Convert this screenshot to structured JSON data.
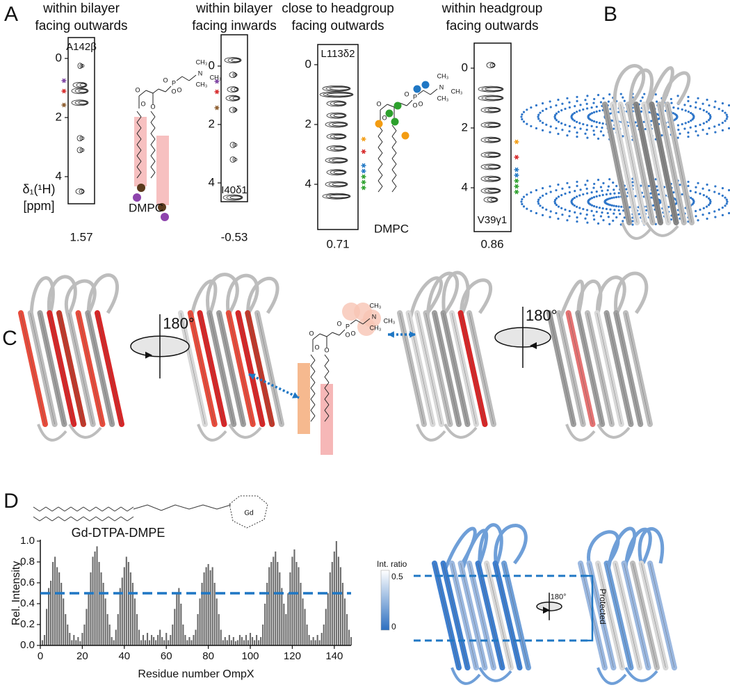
{
  "panels": {
    "A": "A",
    "B": "B",
    "C": "C",
    "D": "D"
  },
  "strips": [
    {
      "header": [
        "within bilayer",
        "facing outwards"
      ],
      "residue": "A142β",
      "ppm": "1.57",
      "yticks": [
        0,
        2,
        4
      ]
    },
    {
      "header": [
        "within bilayer",
        "facing inwards"
      ],
      "residue": "I40δ1",
      "ppm": "-0.53",
      "yticks": [
        0,
        2,
        4
      ]
    },
    {
      "header": [
        "close to headgroup",
        "facing outwards"
      ],
      "residue": "L113δ2",
      "ppm": "0.71",
      "yticks": [
        0,
        2,
        4
      ]
    },
    {
      "header": [
        "within headgroup",
        "facing outwards"
      ],
      "residue": "V39γ1",
      "ppm": "0.86",
      "yticks": [
        0,
        2,
        4
      ]
    }
  ],
  "axis_label": [
    "δ₁(¹H)",
    "[ppm]"
  ],
  "lipids": {
    "left": "DMPC",
    "right": "DMPC"
  },
  "structures": [
    {
      "atoms": [
        "CH₃",
        "N",
        "CH₃",
        "CH₃",
        "P",
        "O",
        "O",
        "O",
        "O",
        "O",
        "O"
      ]
    },
    {
      "atoms": [
        "CH₃",
        "N",
        "CH₃",
        "CH₃",
        "P",
        "O",
        "O",
        "O",
        "O",
        "O",
        "O"
      ]
    },
    {
      "atoms": [
        "CH₃",
        "N",
        "CH₃",
        "CH₃",
        "P",
        "O",
        "O",
        "O",
        "O",
        "O",
        "O"
      ]
    }
  ],
  "rotation": {
    "left": "180°",
    "right": "180°",
    "small": "180°"
  },
  "gd_label": "Gd",
  "colorbar": {
    "title": "Int. ratio",
    "top": "0.5",
    "bottom": "0"
  },
  "protected": "Protected",
  "chart_data": {
    "type": "bar",
    "title": "Gd-DTPA-DMPE",
    "x_label": "Residue number OmpX",
    "y_label": "Rel. Intensity",
    "color": "#6b6b6b",
    "x": [
      1,
      2,
      3,
      4,
      5,
      6,
      7,
      8,
      9,
      10,
      11,
      12,
      13,
      14,
      15,
      16,
      17,
      18,
      19,
      20,
      21,
      22,
      23,
      24,
      25,
      26,
      27,
      28,
      29,
      30,
      31,
      32,
      33,
      34,
      35,
      36,
      37,
      38,
      39,
      40,
      41,
      42,
      43,
      44,
      45,
      46,
      47,
      48,
      49,
      50,
      51,
      52,
      53,
      54,
      55,
      56,
      57,
      58,
      59,
      60,
      61,
      62,
      63,
      64,
      65,
      66,
      67,
      68,
      69,
      70,
      71,
      72,
      73,
      74,
      75,
      76,
      77,
      78,
      79,
      80,
      81,
      82,
      83,
      84,
      85,
      86,
      87,
      88,
      89,
      90,
      91,
      92,
      93,
      94,
      95,
      96,
      97,
      98,
      99,
      100,
      101,
      102,
      103,
      104,
      105,
      106,
      107,
      108,
      109,
      110,
      111,
      112,
      113,
      114,
      115,
      116,
      117,
      118,
      119,
      120,
      121,
      122,
      123,
      124,
      125,
      126,
      127,
      128,
      129,
      130,
      131,
      132,
      133,
      134,
      135,
      136,
      137,
      138,
      139,
      140,
      141,
      142,
      143,
      144,
      145,
      146,
      147,
      148
    ],
    "values": [
      0.05,
      0.1,
      0.35,
      0.55,
      0.62,
      0.8,
      0.85,
      0.75,
      0.7,
      0.6,
      0.45,
      0.3,
      0.2,
      0.12,
      0.05,
      0.1,
      0.05,
      0.08,
      0.04,
      0.12,
      0.2,
      0.35,
      0.5,
      0.7,
      0.85,
      0.9,
      0.95,
      0.8,
      0.7,
      0.6,
      0.45,
      0.3,
      0.2,
      0.08,
      0.05,
      0.15,
      0.3,
      0.55,
      0.65,
      0.75,
      0.85,
      0.8,
      0.7,
      0.6,
      0.45,
      0.3,
      0.15,
      0.05,
      0.1,
      0.05,
      0.12,
      0.05,
      0.1,
      0.08,
      0.05,
      0.1,
      0.15,
      0.08,
      0.05,
      0.12,
      0.05,
      0.1,
      0.2,
      0.35,
      0.5,
      0.55,
      0.4,
      0.2,
      0.1,
      0.05,
      0.08,
      0.05,
      0.1,
      0.15,
      0.3,
      0.45,
      0.6,
      0.7,
      0.75,
      0.78,
      0.72,
      0.75,
      0.6,
      0.45,
      0.3,
      0.15,
      0.05,
      0.08,
      0.05,
      0.1,
      0.05,
      0.08,
      0.04,
      0.05,
      0.1,
      0.08,
      0.05,
      0.1,
      0.05,
      0.12,
      0.08,
      0.05,
      0.1,
      0.05,
      0.08,
      0.2,
      0.4,
      0.6,
      0.75,
      0.8,
      0.85,
      0.9,
      0.8,
      0.7,
      0.55,
      0.4,
      0.3,
      0.5,
      0.7,
      0.85,
      0.92,
      0.8,
      0.75,
      0.6,
      0.45,
      0.35,
      0.2,
      0.1,
      0.05,
      0.08,
      0.05,
      0.1,
      0.05,
      0.12,
      0.2,
      0.35,
      0.5,
      0.7,
      0.8,
      0.9,
      1.0,
      0.85,
      0.75,
      0.6,
      0.45,
      0.3,
      0.15,
      0.08
    ],
    "xlim": [
      0,
      148
    ],
    "ylim": [
      0,
      1
    ],
    "xticks": [
      0,
      20,
      40,
      60,
      80,
      100,
      120,
      140
    ],
    "yticks": [
      {
        "value": 0,
        "label": "0.0"
      },
      {
        "value": 0.2,
        "label": "0.2"
      },
      {
        "value": 0.4,
        "label": "0.4"
      },
      {
        "value": 0.6,
        "label": "0.6"
      },
      {
        "value": 0.8,
        "label": "0.8"
      },
      {
        "value": 1,
        "label": "1.0"
      }
    ],
    "reference_line": {
      "value": 0.5,
      "color": "#1f77c4"
    }
  }
}
